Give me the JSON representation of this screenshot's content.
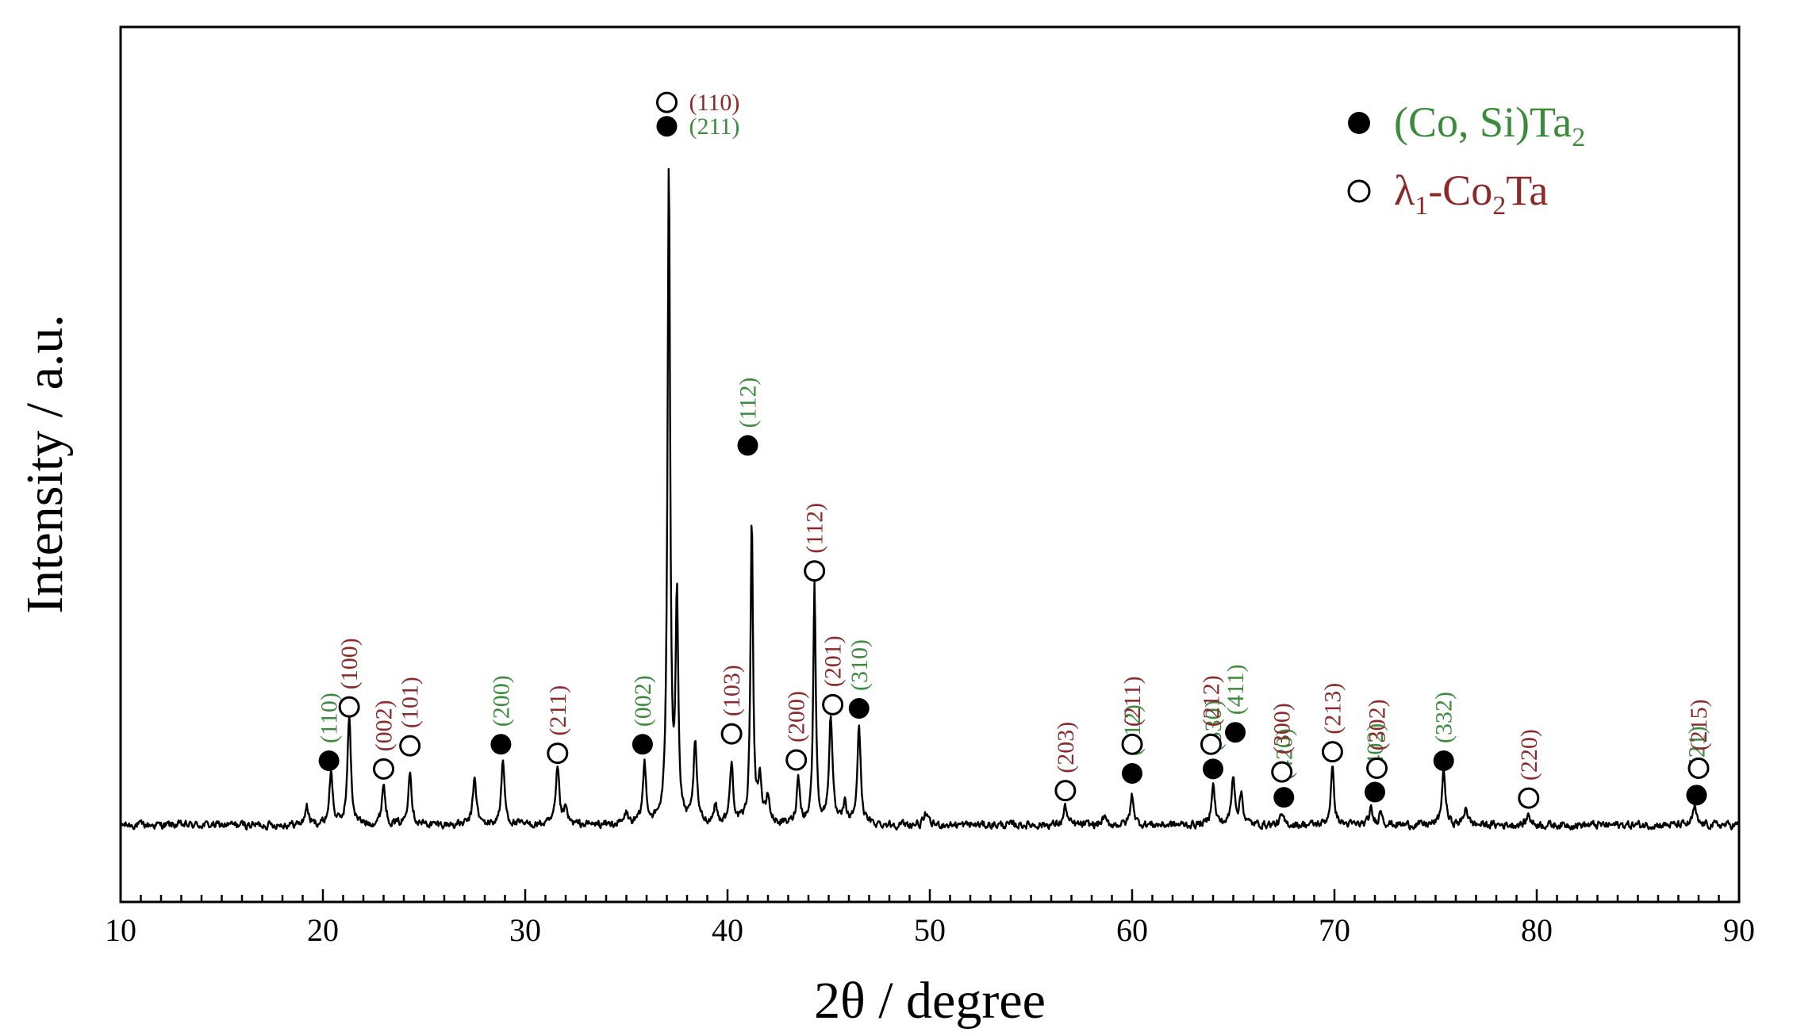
{
  "chart_data": {
    "type": "line",
    "title": "",
    "xlabel": "2θ / degree",
    "ylabel": "Intensity / a.u.",
    "xlim": [
      10,
      90
    ],
    "ylim": [
      0,
      100
    ],
    "y_ticks_shown": false,
    "x_ticks": [
      10,
      20,
      30,
      40,
      50,
      60,
      70,
      80,
      90
    ],
    "grid": false,
    "legend_position": "top-right",
    "colors": {
      "line": "#000000",
      "cosita2_label": "#3c8a3c",
      "co2ta_label": "#8b2a2a"
    },
    "legend": [
      {
        "name_main": "(Co, Si)Ta",
        "name_sub": "2",
        "name_tail": "",
        "marker": "filled-circle",
        "color": "#3c8a3c"
      },
      {
        "name_main": "λ",
        "name_sub": "1",
        "name_tail": "-Co",
        "name_sub2": "2",
        "name_tail2": "Ta",
        "marker": "open-circle",
        "color": "#8b2a2a"
      }
    ],
    "series": [
      {
        "peaks": [
          {
            "x": 19.2,
            "y": 2.5
          },
          {
            "x": 20.4,
            "y": 7.0
          },
          {
            "x": 21.3,
            "y": 14.5
          },
          {
            "x": 23.0,
            "y": 5.5
          },
          {
            "x": 24.3,
            "y": 7.5
          },
          {
            "x": 27.5,
            "y": 6.5
          },
          {
            "x": 28.9,
            "y": 8.5
          },
          {
            "x": 31.6,
            "y": 7.5
          },
          {
            "x": 32.0,
            "y": 2.0
          },
          {
            "x": 35.0,
            "y": 1.5
          },
          {
            "x": 35.9,
            "y": 8.0
          },
          {
            "x": 37.1,
            "y": 88.5
          },
          {
            "x": 37.5,
            "y": 30.0
          },
          {
            "x": 38.4,
            "y": 10.5
          },
          {
            "x": 39.4,
            "y": 2.5
          },
          {
            "x": 40.2,
            "y": 8.0
          },
          {
            "x": 41.2,
            "y": 40.5
          },
          {
            "x": 41.6,
            "y": 6.0
          },
          {
            "x": 42.0,
            "y": 3.5
          },
          {
            "x": 43.5,
            "y": 6.0
          },
          {
            "x": 44.3,
            "y": 32.5
          },
          {
            "x": 45.1,
            "y": 14.5
          },
          {
            "x": 45.8,
            "y": 2.5
          },
          {
            "x": 46.5,
            "y": 13.0
          },
          {
            "x": 49.8,
            "y": 1.5
          },
          {
            "x": 56.7,
            "y": 2.5
          },
          {
            "x": 58.6,
            "y": 1.0
          },
          {
            "x": 60.0,
            "y": 4.0
          },
          {
            "x": 64.0,
            "y": 5.5
          },
          {
            "x": 65.0,
            "y": 6.5
          },
          {
            "x": 65.4,
            "y": 4.0
          },
          {
            "x": 67.4,
            "y": 1.2
          },
          {
            "x": 69.9,
            "y": 7.5
          },
          {
            "x": 71.8,
            "y": 2.0
          },
          {
            "x": 72.3,
            "y": 2.0
          },
          {
            "x": 75.4,
            "y": 7.5
          },
          {
            "x": 76.5,
            "y": 2.5
          },
          {
            "x": 79.6,
            "y": 1.5
          },
          {
            "x": 87.8,
            "y": 2.3
          }
        ]
      }
    ],
    "annotations": [
      {
        "label": "(110)",
        "x": 37.0,
        "y": 96.7,
        "phase": "co2ta",
        "label_pos": "right"
      },
      {
        "label": "(211)",
        "x": 37.0,
        "y": 93.5,
        "phase": "cosita2",
        "label_pos": "right"
      },
      {
        "label": "(110)",
        "x": 20.3,
        "y": 8.6,
        "phase": "cosita2",
        "label_pos": "up"
      },
      {
        "label": "(100)",
        "x": 21.3,
        "y": 15.8,
        "phase": "co2ta",
        "label_pos": "up"
      },
      {
        "label": "(002)",
        "x": 23.0,
        "y": 7.5,
        "phase": "co2ta",
        "label_pos": "up"
      },
      {
        "label": "(101)",
        "x": 24.3,
        "y": 10.6,
        "phase": "co2ta",
        "label_pos": "up"
      },
      {
        "label": "(200)",
        "x": 28.8,
        "y": 10.8,
        "phase": "cosita2",
        "label_pos": "up"
      },
      {
        "label": "(211)",
        "x": 31.6,
        "y": 9.6,
        "phase": "co2ta",
        "label_pos": "up"
      },
      {
        "label": "(002)",
        "x": 35.8,
        "y": 10.8,
        "phase": "cosita2",
        "label_pos": "up"
      },
      {
        "label": "(103)",
        "x": 40.2,
        "y": 12.2,
        "phase": "co2ta",
        "label_pos": "up"
      },
      {
        "label": "(112)",
        "x": 41.0,
        "y": 50.8,
        "phase": "cosita2",
        "label_pos": "up"
      },
      {
        "label": "(200)",
        "x": 43.4,
        "y": 8.7,
        "phase": "co2ta",
        "label_pos": "up"
      },
      {
        "label": "(112)",
        "x": 44.3,
        "y": 34.0,
        "phase": "co2ta",
        "label_pos": "up"
      },
      {
        "label": "(201)",
        "x": 45.2,
        "y": 16.1,
        "phase": "co2ta",
        "label_pos": "up"
      },
      {
        "label": "(310)",
        "x": 46.5,
        "y": 15.6,
        "phase": "cosita2",
        "label_pos": "up"
      },
      {
        "label": "(203)",
        "x": 56.7,
        "y": 4.6,
        "phase": "co2ta",
        "label_pos": "up"
      },
      {
        "label": "(312)",
        "x": 60.0,
        "y": 6.9,
        "phase": "cosita2",
        "label_pos": "up"
      },
      {
        "label": "(211)",
        "x": 60.0,
        "y": 10.8,
        "phase": "co2ta",
        "label_pos": "up"
      },
      {
        "label": "(330)",
        "x": 64.0,
        "y": 7.5,
        "phase": "cosita2",
        "label_pos": "up"
      },
      {
        "label": "(212)",
        "x": 63.9,
        "y": 10.8,
        "phase": "co2ta",
        "label_pos": "up"
      },
      {
        "label": "(411)",
        "x": 65.1,
        "y": 12.4,
        "phase": "cosita2",
        "label_pos": "up"
      },
      {
        "label": "(420)",
        "x": 67.5,
        "y": 3.7,
        "phase": "cosita2",
        "label_pos": "up"
      },
      {
        "label": "(300)",
        "x": 67.4,
        "y": 7.1,
        "phase": "co2ta",
        "label_pos": "up"
      },
      {
        "label": "(213)",
        "x": 69.9,
        "y": 9.8,
        "phase": "co2ta",
        "label_pos": "up"
      },
      {
        "label": "(402)",
        "x": 72.0,
        "y": 4.4,
        "phase": "cosita2",
        "label_pos": "up"
      },
      {
        "label": "(302)",
        "x": 72.1,
        "y": 7.6,
        "phase": "co2ta",
        "label_pos": "up"
      },
      {
        "label": "(332)",
        "x": 75.4,
        "y": 8.6,
        "phase": "cosita2",
        "label_pos": "up"
      },
      {
        "label": "(220)",
        "x": 79.6,
        "y": 3.6,
        "phase": "co2ta",
        "label_pos": "up"
      },
      {
        "label": "(521)",
        "x": 87.9,
        "y": 4.0,
        "phase": "cosita2",
        "label_pos": "up"
      },
      {
        "label": "(215)",
        "x": 88.0,
        "y": 7.6,
        "phase": "co2ta",
        "label_pos": "up"
      }
    ]
  }
}
